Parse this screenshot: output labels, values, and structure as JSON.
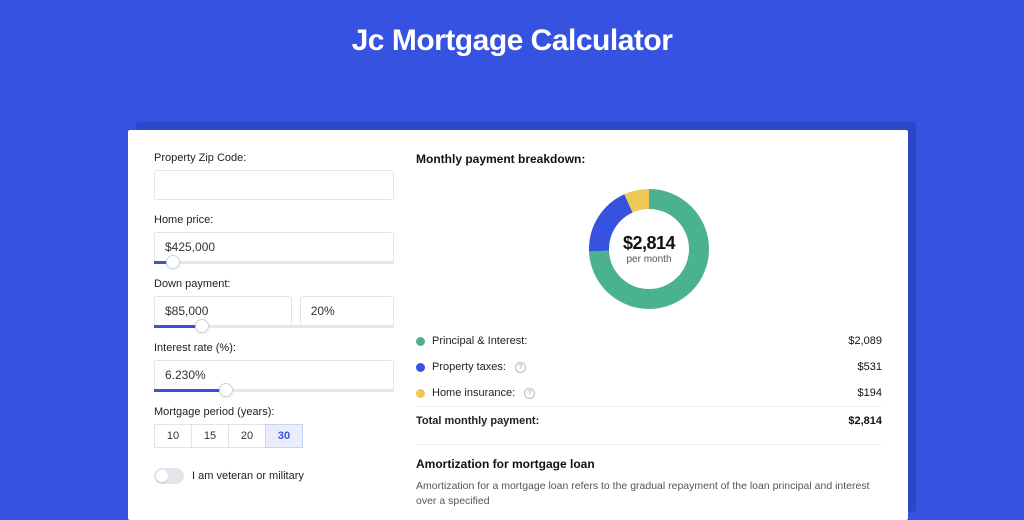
{
  "page": {
    "title": "Jc Mortgage Calculator",
    "background_color": "#3552e0",
    "card_background": "#ffffff",
    "shadow_color": "#2b46c8"
  },
  "form": {
    "zip": {
      "label": "Property Zip Code:",
      "value": ""
    },
    "home_price": {
      "label": "Home price:",
      "value": "$425,000",
      "slider_pct": 8
    },
    "down_payment": {
      "label": "Down payment:",
      "amount": "$85,000",
      "percent": "20%",
      "slider_pct": 20
    },
    "interest_rate": {
      "label": "Interest rate (%):",
      "value": "6.230%",
      "slider_pct": 30
    },
    "mortgage_period": {
      "label": "Mortgage period (years):",
      "options": [
        "10",
        "15",
        "20",
        "30"
      ],
      "selected": "30"
    },
    "veteran": {
      "label": "I am veteran or military",
      "on": false
    }
  },
  "breakdown": {
    "header": "Monthly payment breakdown:",
    "donut": {
      "amount": "$2,814",
      "sublabel": "per month",
      "segments": [
        {
          "name": "principal_interest",
          "color": "#4bb28f",
          "pct": 74.2
        },
        {
          "name": "property_taxes",
          "color": "#3552e0",
          "pct": 18.9
        },
        {
          "name": "home_insurance",
          "color": "#f0c858",
          "pct": 6.9
        }
      ],
      "stroke_width": 20,
      "bg": "#ffffff"
    },
    "legend": [
      {
        "label": "Principal & Interest:",
        "color": "#4bb28f",
        "value": "$2,089",
        "info": false
      },
      {
        "label": "Property taxes:",
        "color": "#3552e0",
        "value": "$531",
        "info": true
      },
      {
        "label": "Home insurance:",
        "color": "#f0c858",
        "value": "$194",
        "info": true
      }
    ],
    "total": {
      "label": "Total monthly payment:",
      "value": "$2,814"
    }
  },
  "amortization": {
    "title": "Amortization for mortgage loan",
    "text": "Amortization for a mortgage loan refers to the gradual repayment of the loan principal and interest over a specified"
  }
}
